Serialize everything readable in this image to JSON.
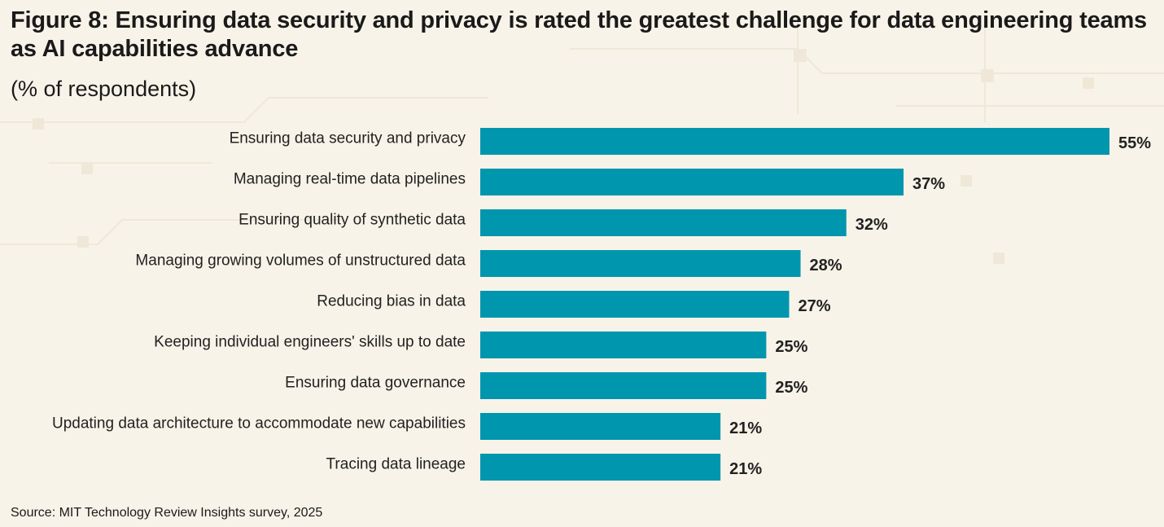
{
  "title": "Figure 8: Ensuring data security and privacy is rated the greatest challenge for data engineering teams as AI capabilities advance",
  "subtitle": "(% of respondents)",
  "source": "Source: MIT Technology Review Insights survey, 2025",
  "colors": {
    "bar": "#0096ad",
    "background": "#f8f3e8",
    "pattern": "#efe8d8"
  },
  "chart_data": {
    "type": "bar",
    "orientation": "horizontal",
    "categories": [
      "Ensuring data security and privacy",
      "Managing real-time data pipelines",
      "Ensuring quality of synthetic data",
      "Managing growing volumes of unstructured data",
      "Reducing bias in data",
      "Keeping individual engineers' skills up to date",
      "Ensuring data governance",
      "Updating data architecture to accommodate new capabilities",
      "Tracing data lineage"
    ],
    "values": [
      55,
      37,
      32,
      28,
      27,
      25,
      25,
      21,
      21
    ],
    "value_suffix": "%",
    "xlim": [
      0,
      55
    ],
    "grid": false,
    "legend": false
  }
}
